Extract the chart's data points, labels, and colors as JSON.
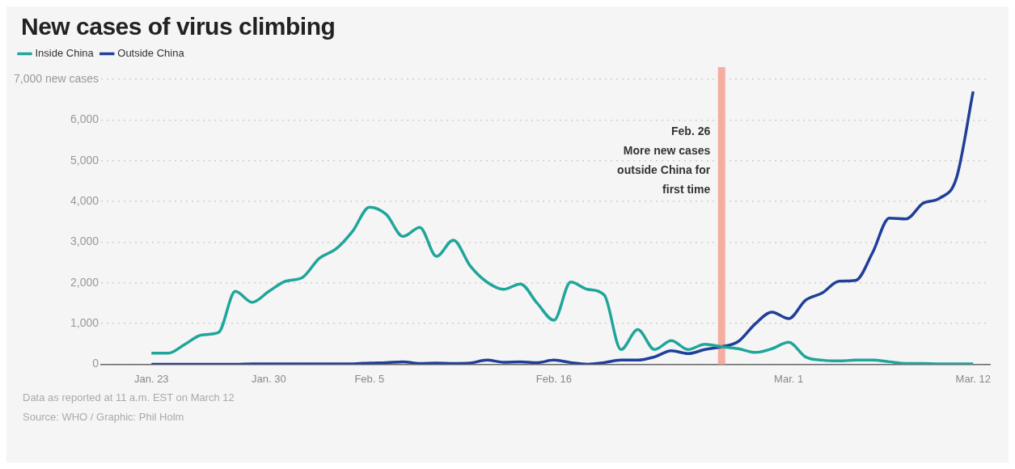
{
  "chart_data": {
    "type": "line",
    "title": "New cases of virus climbing",
    "x": [
      "--01-23",
      "--01-24",
      "--01-25",
      "--01-26",
      "--01-27",
      "--01-28",
      "--01-29",
      "--01-30",
      "--01-31",
      "--02-01",
      "--02-02",
      "--02-03",
      "--02-04",
      "--02-05",
      "--02-06",
      "--02-07",
      "--02-08",
      "--02-09",
      "--02-10",
      "--02-11",
      "--02-12",
      "--02-13",
      "--02-14",
      "--02-15",
      "--02-16",
      "--02-17",
      "--02-18",
      "--02-19",
      "--02-20",
      "--02-21",
      "--02-22",
      "--02-23",
      "--02-24",
      "--02-25",
      "--02-26",
      "--02-27",
      "--02-28",
      "--02-29",
      "--03-01",
      "--03-02",
      "--03-03",
      "--03-04",
      "--03-05",
      "--03-06",
      "--03-07",
      "--03-08",
      "--03-09",
      "--03-10",
      "--03-11",
      "--03-12"
    ],
    "series": [
      {
        "name": "Inside China",
        "color": "#1fa59b",
        "values": [
          270,
          270,
          490,
          720,
          780,
          1790,
          1520,
          1790,
          2040,
          2130,
          2600,
          2830,
          3270,
          3860,
          3680,
          3140,
          3360,
          2650,
          3050,
          2420,
          2020,
          1840,
          1970,
          1500,
          1080,
          2020,
          1840,
          1700,
          360,
          850,
          360,
          580,
          360,
          490,
          430,
          380,
          290,
          380,
          540,
          180,
          100,
          80,
          100,
          100,
          60,
          20,
          20,
          10,
          10,
          10
        ]
      },
      {
        "name": "Outside China",
        "color": "#1f3f99",
        "values": [
          0,
          0,
          0,
          0,
          0,
          0,
          10,
          10,
          10,
          10,
          10,
          10,
          10,
          30,
          40,
          60,
          20,
          30,
          20,
          30,
          100,
          50,
          60,
          40,
          100,
          40,
          0,
          40,
          100,
          100,
          180,
          330,
          260,
          360,
          430,
          560,
          990,
          1280,
          1120,
          1570,
          1750,
          2040,
          2060,
          2740,
          3590,
          3570,
          3950,
          4080,
          4570,
          6700
        ]
      }
    ],
    "xlim": [
      "--01-20",
      "--03-13"
    ],
    "xticks": [
      {
        "value": "--01-23",
        "label": "Jan. 23"
      },
      {
        "value": "--01-30",
        "label": "Jan. 30"
      },
      {
        "value": "--02-05",
        "label": "Feb. 5"
      },
      {
        "value": "--02-16",
        "label": "Feb. 16"
      },
      {
        "value": "--03-01",
        "label": "Mar. 1"
      },
      {
        "value": "--03-12",
        "label": "Mar. 12"
      }
    ],
    "ylim": [
      0,
      7300
    ],
    "yticks": [
      {
        "value": 0,
        "label": "0"
      },
      {
        "value": 1000,
        "label": "1,000"
      },
      {
        "value": 2000,
        "label": "2,000"
      },
      {
        "value": 3000,
        "label": "3,000"
      },
      {
        "value": 4000,
        "label": "4,000"
      },
      {
        "value": 5000,
        "label": "5,000"
      },
      {
        "value": 6000,
        "label": "6,000"
      },
      {
        "value": 7000,
        "label": "7,000 new cases"
      }
    ],
    "grid": "y",
    "legend": "top left",
    "line_style": "solid",
    "marker": "none",
    "ref_lines": [
      {
        "axis": "x",
        "value": "--02-26",
        "color": "#f4ada0"
      }
    ],
    "annotations": [
      {
        "text": "Feb. 26\nMore new cases\noutside China for\nfirst time",
        "x": "--02-26",
        "y": 5000
      },
      "Data as reported at 11 a.m. EST on March 12",
      "Source: WHO / Graphic: Phil Holm"
    ]
  }
}
